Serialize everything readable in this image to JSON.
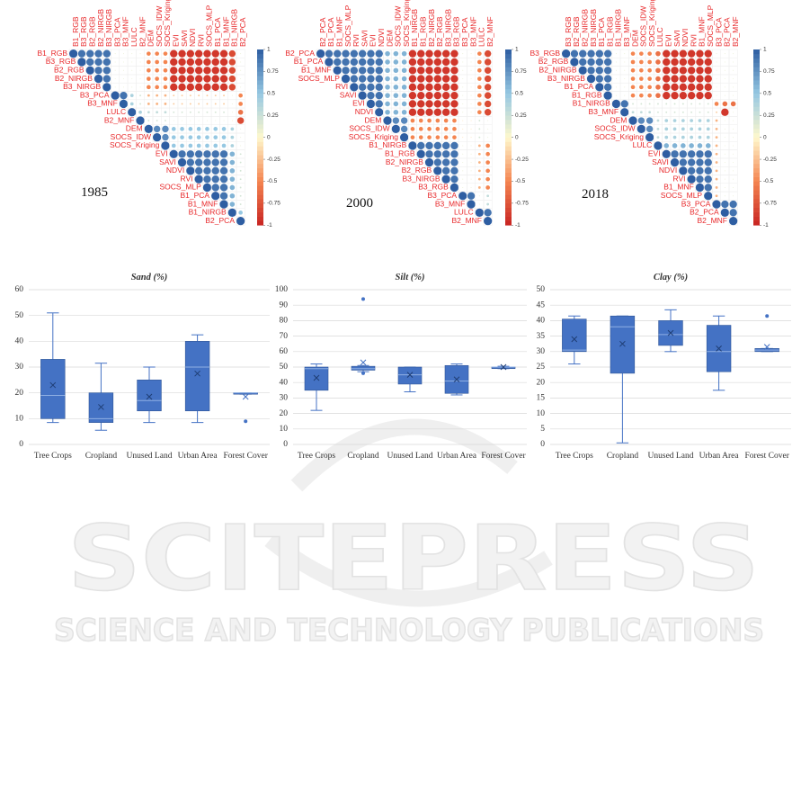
{
  "chart_data": [
    {
      "type": "corrplot",
      "label": "1985",
      "clim": [
        -1,
        1
      ],
      "ticks": [
        1,
        0.75,
        0.5,
        0.25,
        0,
        -0.25,
        -0.5,
        -0.75,
        -1
      ],
      "variables": [
        "B1_RGB",
        "B3_RGB",
        "B2_RGB",
        "B2_NIRGB",
        "B3_NIRGB",
        "B3_PCA",
        "B3_MNF",
        "LULC",
        "B2_MNF",
        "DEM",
        "SOCS_IDW",
        "SOCS_Kriging",
        "EVI",
        "SAVI",
        "NDVI",
        "RVI",
        "SOCS_MLP",
        "B1_PCA",
        "B1_MNF",
        "B1_NIRGB",
        "B2_PCA"
      ],
      "matrix": [
        [
          1,
          0.9,
          0.9,
          0.9,
          0.9,
          0.1,
          0.1,
          0.1,
          0.1,
          -0.5,
          -0.5,
          -0.5,
          -0.9,
          -0.9,
          -0.9,
          -0.9,
          -0.9,
          -0.9,
          -0.9,
          -0.8,
          0.1
        ],
        [
          1,
          0.9,
          0.9,
          0.9,
          0.1,
          0.1,
          0.1,
          0.1,
          -0.5,
          -0.5,
          -0.5,
          -0.9,
          -0.9,
          -0.9,
          -0.9,
          -0.9,
          -0.9,
          -0.9,
          -0.8,
          0.1
        ],
        [
          1,
          0.9,
          0.9,
          0.1,
          0.1,
          0.1,
          0.1,
          -0.5,
          -0.5,
          -0.5,
          -0.9,
          -0.9,
          -0.9,
          -0.9,
          -0.9,
          -0.9,
          -0.9,
          -0.8,
          0.1
        ],
        [
          1,
          0.9,
          0.1,
          0.1,
          0.1,
          0.1,
          -0.5,
          -0.5,
          -0.5,
          -0.9,
          -0.9,
          -0.9,
          -0.9,
          -0.9,
          -0.9,
          -0.9,
          -0.8,
          0.1
        ],
        [
          1,
          0.1,
          0.1,
          0.1,
          0.1,
          -0.5,
          -0.5,
          -0.5,
          -0.9,
          -0.9,
          -0.9,
          -0.9,
          -0.9,
          -0.9,
          -0.9,
          -0.8,
          0.1
        ],
        [
          1,
          0.9,
          0.4,
          0.2,
          -0.3,
          -0.3,
          -0.3,
          -0.2,
          -0.2,
          -0.2,
          -0.2,
          -0.2,
          -0.2,
          -0.2,
          0.1,
          -0.5
        ],
        [
          1,
          0.4,
          0.2,
          -0.3,
          -0.3,
          -0.3,
          -0.2,
          -0.2,
          -0.2,
          -0.2,
          -0.2,
          -0.2,
          -0.2,
          0.1,
          -0.5
        ],
        [
          1,
          0.4,
          0.3,
          0.3,
          0.3,
          0.2,
          0.2,
          0.2,
          0.2,
          0.2,
          0.2,
          0.2,
          0.1,
          -0.6
        ],
        [
          1,
          0.2,
          0.2,
          0.2,
          0.1,
          0.1,
          0.1,
          0.1,
          0.1,
          0.1,
          0.1,
          -0.1,
          -0.8
        ],
        [
          1,
          0.8,
          0.8,
          0.5,
          0.5,
          0.5,
          0.5,
          0.5,
          0.5,
          0.5,
          0.4,
          0.1
        ],
        [
          1,
          0.8,
          0.5,
          0.5,
          0.5,
          0.5,
          0.5,
          0.5,
          0.5,
          0.4,
          0.1
        ],
        [
          1,
          0.5,
          0.5,
          0.5,
          0.5,
          0.5,
          0.5,
          0.5,
          0.4,
          0.1
        ],
        [
          1,
          0.9,
          0.9,
          0.9,
          0.9,
          0.9,
          0.9,
          0.6,
          0.2
        ],
        [
          1,
          0.9,
          0.9,
          0.9,
          0.9,
          0.9,
          0.6,
          0.2
        ],
        [
          1,
          0.9,
          0.9,
          0.9,
          0.9,
          0.6,
          0.2
        ],
        [
          1,
          0.9,
          0.9,
          0.9,
          0.6,
          0.2
        ],
        [
          1,
          0.9,
          0.9,
          0.6,
          0.2
        ],
        [
          1,
          0.9,
          0.6,
          0.2
        ],
        [
          1,
          0.6,
          0.2
        ],
        [
          1,
          0.5
        ],
        [
          1
        ]
      ]
    },
    {
      "type": "corrplot",
      "label": "2000",
      "clim": [
        -1,
        1
      ],
      "ticks": [
        1,
        0.75,
        0.5,
        0.25,
        0,
        -0.25,
        -0.5,
        -0.75,
        -1
      ],
      "variables": [
        "B2_PCA",
        "B1_PCA",
        "B1_MNF",
        "SOCS_MLP",
        "RVI",
        "SAVI",
        "EVI",
        "NDVI",
        "DEM",
        "SOCS_IDW",
        "SOCS_Kriging",
        "B1_NIRGB",
        "B1_RGB",
        "B2_NIRGB",
        "B2_RGB",
        "B3_NIRGB",
        "B3_RGB",
        "B3_PCA",
        "B3_MNF",
        "LULC",
        "B2_MNF"
      ],
      "matrix": [
        [
          1,
          0.9,
          0.9,
          0.9,
          0.9,
          0.9,
          0.9,
          0.9,
          0.6,
          0.6,
          0.6,
          -0.9,
          -0.9,
          -0.9,
          -0.9,
          -0.9,
          -0.9,
          0.1,
          0.1,
          -0.5,
          -0.8
        ],
        [
          1,
          0.9,
          0.9,
          0.9,
          0.9,
          0.9,
          0.9,
          0.6,
          0.6,
          0.6,
          -0.9,
          -0.9,
          -0.9,
          -0.9,
          -0.9,
          -0.9,
          0.1,
          0.1,
          -0.5,
          -0.8
        ],
        [
          1,
          0.9,
          0.9,
          0.9,
          0.9,
          0.9,
          0.6,
          0.6,
          0.6,
          -0.9,
          -0.9,
          -0.9,
          -0.9,
          -0.9,
          -0.9,
          0.1,
          0.1,
          -0.5,
          -0.8
        ],
        [
          1,
          0.9,
          0.9,
          0.9,
          0.9,
          0.6,
          0.6,
          0.6,
          -0.9,
          -0.9,
          -0.9,
          -0.9,
          -0.9,
          -0.9,
          0.1,
          0.1,
          -0.5,
          -0.8
        ],
        [
          1,
          0.9,
          0.9,
          0.9,
          0.6,
          0.6,
          0.6,
          -0.9,
          -0.9,
          -0.9,
          -0.9,
          -0.9,
          -0.9,
          0.1,
          0.1,
          -0.5,
          -0.8
        ],
        [
          1,
          0.9,
          0.9,
          0.6,
          0.6,
          0.6,
          -0.9,
          -0.9,
          -0.9,
          -0.9,
          -0.9,
          -0.9,
          0.1,
          0.1,
          -0.5,
          -0.8
        ],
        [
          1,
          0.9,
          0.6,
          0.6,
          0.6,
          -0.9,
          -0.9,
          -0.9,
          -0.9,
          -0.9,
          -0.9,
          0.1,
          0.1,
          -0.5,
          -0.8
        ],
        [
          1,
          0.6,
          0.6,
          0.6,
          -0.9,
          -0.9,
          -0.9,
          -0.9,
          -0.9,
          -0.9,
          0.1,
          0.1,
          -0.5,
          -0.8
        ],
        [
          1,
          0.8,
          0.8,
          -0.5,
          -0.5,
          -0.5,
          -0.5,
          -0.5,
          -0.5,
          -0.1,
          -0.1,
          0.2,
          0.1
        ],
        [
          1,
          0.8,
          -0.5,
          -0.5,
          -0.5,
          -0.5,
          -0.5,
          -0.5,
          -0.1,
          -0.1,
          0.2,
          0.1
        ],
        [
          1,
          -0.5,
          -0.5,
          -0.5,
          -0.5,
          -0.5,
          -0.5,
          -0.1,
          -0.1,
          0.2,
          0.1
        ],
        [
          1,
          0.9,
          0.9,
          0.9,
          0.9,
          0.9,
          0.1,
          0.1,
          -0.3,
          -0.5
        ],
        [
          1,
          0.9,
          0.9,
          0.9,
          0.9,
          0.1,
          0.1,
          -0.3,
          -0.5
        ],
        [
          1,
          0.9,
          0.9,
          0.9,
          0.1,
          0.1,
          -0.3,
          -0.5
        ],
        [
          1,
          0.9,
          0.9,
          0.1,
          0.1,
          -0.3,
          -0.5
        ],
        [
          1,
          0.9,
          0.1,
          0.1,
          -0.3,
          -0.5
        ],
        [
          1,
          0.1,
          0.1,
          -0.3,
          -0.5
        ],
        [
          1,
          0.9,
          0.1,
          0.3
        ],
        [
          1,
          0.1,
          0.3
        ],
        [
          1,
          0.9
        ],
        [
          1
        ]
      ]
    },
    {
      "type": "corrplot",
      "label": "2018",
      "clim": [
        -1,
        1
      ],
      "ticks": [
        1,
        0.75,
        0.5,
        0.25,
        0,
        -0.25,
        -0.5,
        -0.75,
        -1
      ],
      "variables": [
        "B3_RGB",
        "B2_RGB",
        "B2_NIRGB",
        "B3_NIRGB",
        "B1_PCA",
        "B1_RGB",
        "B1_NIRGB",
        "B3_MNF",
        "DEM",
        "SOCS_IDW",
        "SOCS_Kriging",
        "LULC",
        "EVI",
        "SAVI",
        "NDVI",
        "RVI",
        "B1_MNF",
        "SOCS_MLP",
        "B3_PCA",
        "B2_PCA",
        "B2_MNF"
      ],
      "matrix": [
        [
          1,
          0.9,
          0.9,
          0.9,
          0.9,
          0.9,
          0.1,
          0.1,
          -0.5,
          -0.5,
          -0.5,
          -0.6,
          -0.9,
          -0.9,
          -0.9,
          -0.9,
          -0.9,
          -0.9,
          0.1,
          0.1,
          0.1
        ],
        [
          1,
          0.9,
          0.9,
          0.9,
          0.9,
          0.1,
          0.1,
          -0.5,
          -0.5,
          -0.5,
          -0.6,
          -0.9,
          -0.9,
          -0.9,
          -0.9,
          -0.9,
          -0.9,
          0.1,
          0.1,
          0.1
        ],
        [
          1,
          0.9,
          0.9,
          0.9,
          0.1,
          0.1,
          -0.5,
          -0.5,
          -0.5,
          -0.6,
          -0.9,
          -0.9,
          -0.9,
          -0.9,
          -0.9,
          -0.9,
          0.1,
          0.1,
          0.1
        ],
        [
          1,
          0.9,
          0.9,
          0.1,
          0.1,
          -0.5,
          -0.5,
          -0.5,
          -0.6,
          -0.9,
          -0.9,
          -0.9,
          -0.9,
          -0.9,
          -0.9,
          0.1,
          0.1,
          0.1
        ],
        [
          1,
          0.9,
          0.1,
          0.1,
          -0.5,
          -0.5,
          -0.5,
          -0.6,
          -0.9,
          -0.9,
          -0.9,
          -0.9,
          -0.9,
          -0.9,
          0.1,
          0.1,
          0.1
        ],
        [
          1,
          0.1,
          0.1,
          -0.5,
          -0.5,
          -0.5,
          -0.6,
          -0.9,
          -0.9,
          -0.9,
          -0.9,
          -0.9,
          -0.9,
          0.1,
          0.1,
          0.1
        ],
        [
          1,
          0.9,
          0.2,
          0.2,
          0.2,
          0.2,
          0.2,
          0.2,
          0.2,
          0.2,
          0.2,
          0.2,
          -0.5,
          -0.6,
          -0.6
        ],
        [
          1,
          0.3,
          0.3,
          0.3,
          0.2,
          0.2,
          0.2,
          0.2,
          0.2,
          0.2,
          0.2,
          -0.2,
          -0.9,
          0.1
        ],
        [
          1,
          0.8,
          0.8,
          0.3,
          0.4,
          0.4,
          0.4,
          0.4,
          0.4,
          0.4,
          -0.3,
          0.1,
          0.1
        ],
        [
          1,
          0.8,
          0.3,
          0.4,
          0.4,
          0.4,
          0.4,
          0.4,
          0.4,
          -0.3,
          0.1,
          0.1
        ],
        [
          1,
          0.3,
          0.4,
          0.4,
          0.4,
          0.4,
          0.4,
          0.4,
          -0.3,
          0.1,
          0.1
        ],
        [
          1,
          0.6,
          0.6,
          0.6,
          0.6,
          0.6,
          0.6,
          -0.3,
          0.1,
          0.1
        ],
        [
          1,
          0.9,
          0.9,
          0.9,
          0.9,
          0.9,
          -0.3,
          0.1,
          0.1
        ],
        [
          1,
          0.9,
          0.9,
          0.9,
          0.9,
          -0.3,
          0.1,
          0.1
        ],
        [
          1,
          0.9,
          0.9,
          0.9,
          -0.3,
          0.1,
          0.1
        ],
        [
          1,
          0.9,
          0.9,
          -0.3,
          0.1,
          0.1
        ],
        [
          1,
          0.9,
          -0.3,
          0.1,
          0.1
        ],
        [
          1,
          -0.3,
          0.1,
          0.1
        ],
        [
          1,
          0.9,
          0.9
        ],
        [
          1,
          0.9
        ],
        [
          1
        ]
      ]
    },
    {
      "type": "box",
      "title": "Sand (%)",
      "color": "#4472c4",
      "grid": true,
      "categories": [
        "Tree Crops",
        "Cropland",
        "Unused Land",
        "Urban Area",
        "Forest Cover"
      ],
      "ylim": [
        0,
        60
      ],
      "yticks": [
        0,
        10,
        20,
        30,
        40,
        50,
        60
      ],
      "boxes": [
        {
          "min": 8.5,
          "q1": 10,
          "median": 19,
          "q3": 33,
          "max": 51,
          "mean": 23
        },
        {
          "min": 5.5,
          "q1": 8.5,
          "median": 10,
          "q3": 20,
          "max": 31.5,
          "mean": 14.5
        },
        {
          "min": 8.5,
          "q1": 13,
          "median": 17,
          "q3": 25,
          "max": 30,
          "mean": 18.5
        },
        {
          "min": 8.5,
          "q1": 13,
          "median": 30,
          "q3": 40,
          "max": 42.5,
          "mean": 27.5
        },
        {
          "min": 19.5,
          "q1": 19.5,
          "median": 20,
          "q3": 20,
          "max": 20,
          "mean": 18.5,
          "outliers": [
            9
          ]
        }
      ]
    },
    {
      "type": "box",
      "title": "Silt (%)",
      "color": "#4472c4",
      "grid": true,
      "categories": [
        "Tree Crops",
        "Cropland",
        "Unused Land",
        "Urban Area",
        "Forest Cover"
      ],
      "ylim": [
        0,
        100
      ],
      "yticks": [
        0,
        10,
        20,
        30,
        40,
        50,
        60,
        70,
        80,
        90,
        100
      ],
      "boxes": [
        {
          "min": 22,
          "q1": 35,
          "median": 49,
          "q3": 50,
          "max": 52,
          "mean": 43
        },
        {
          "min": 47,
          "q1": 48,
          "median": 49,
          "q3": 50.5,
          "max": 51,
          "mean": 53,
          "outliers": [
            94,
            46
          ]
        },
        {
          "min": 34,
          "q1": 39,
          "median": 45,
          "q3": 50,
          "max": 50,
          "mean": 45
        },
        {
          "min": 32,
          "q1": 33,
          "median": 41,
          "q3": 51,
          "max": 52,
          "mean": 42
        },
        {
          "min": 49,
          "q1": 49,
          "median": 50,
          "q3": 50,
          "max": 50.5,
          "mean": 50
        }
      ]
    },
    {
      "type": "box",
      "title": "Clay (%)",
      "color": "#4472c4",
      "grid": true,
      "categories": [
        "Tree Crops",
        "Cropland",
        "Unused Land",
        "Urban Area",
        "Forest Cover"
      ],
      "ylim": [
        0,
        50
      ],
      "yticks": [
        0,
        5,
        10,
        15,
        20,
        25,
        30,
        35,
        40,
        45,
        50
      ],
      "boxes": [
        {
          "min": 26,
          "q1": 30,
          "median": 30.5,
          "q3": 40.5,
          "max": 41.5,
          "mean": 34
        },
        {
          "min": 0.5,
          "q1": 23,
          "median": 38,
          "q3": 41.5,
          "max": 41.5,
          "mean": 32.5
        },
        {
          "min": 30,
          "q1": 32,
          "median": 35.5,
          "q3": 40,
          "max": 43.5,
          "mean": 36
        },
        {
          "min": 17.5,
          "q1": 23.5,
          "median": 30,
          "q3": 38.5,
          "max": 41.5,
          "mean": 31
        },
        {
          "min": 30,
          "q1": 30,
          "median": 30.5,
          "q3": 31,
          "max": 31,
          "mean": 31.5,
          "outliers": [
            41.5
          ]
        }
      ]
    }
  ],
  "watermark": {
    "line1": "SCITEPRESS",
    "line2": "SCIENCE AND TECHNOLOGY PUBLICATIONS"
  }
}
